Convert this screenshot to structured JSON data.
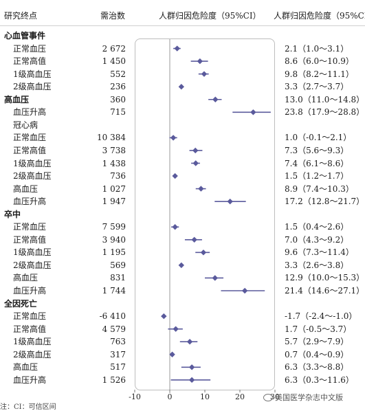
{
  "header": {
    "col_group": "研究终点",
    "col_nnt": "需治数",
    "col_paf_plot": "人群归因危险度（95%CI）",
    "col_paf_text": "人群归因危险度（95%CI）"
  },
  "rows": [
    {
      "label": "心血管事件",
      "group": true,
      "nnt": "",
      "ci": "",
      "est": null,
      "lo": null,
      "hi": null
    },
    {
      "label": "正常血压",
      "group": false,
      "nnt": "2 672",
      "ci": "2.1（1.0～3.1）",
      "est": 2.1,
      "lo": 1.0,
      "hi": 3.1
    },
    {
      "label": "正常高值",
      "group": false,
      "nnt": "1 450",
      "ci": "8.6（6.0～10.9）",
      "est": 8.6,
      "lo": 6.0,
      "hi": 10.9
    },
    {
      "label": "1级高血压",
      "group": false,
      "nnt": "552",
      "ci": "9.8（8.2～11.1）",
      "est": 9.8,
      "lo": 8.2,
      "hi": 11.1
    },
    {
      "label": "2级高血压",
      "group": false,
      "nnt": "236",
      "ci": "3.3（2.7～3.7）",
      "est": 3.3,
      "lo": 2.7,
      "hi": 3.7
    },
    {
      "label": "高血压",
      "group": true,
      "nnt": "360",
      "ci": "13.0（11.0～14.8）",
      "est": 13.0,
      "lo": 11.0,
      "hi": 14.8
    },
    {
      "label": "血压升高",
      "group": false,
      "nnt": "715",
      "ci": "23.8（17.9～28.8）",
      "est": 23.8,
      "lo": 17.9,
      "hi": 28.8
    },
    {
      "label": "冠心病",
      "group": false,
      "nnt": "",
      "ci": "",
      "est": null,
      "lo": null,
      "hi": null
    },
    {
      "label": "正常血压",
      "group": false,
      "nnt": "10 384",
      "ci": "1.0（-0.1～2.1）",
      "est": 1.0,
      "lo": -0.1,
      "hi": 2.1
    },
    {
      "label": "正常高值",
      "group": false,
      "nnt": "3 738",
      "ci": "7.3（5.6～9.3）",
      "est": 7.3,
      "lo": 5.6,
      "hi": 9.3
    },
    {
      "label": "1级高血压",
      "group": false,
      "nnt": "1 438",
      "ci": "7.4（6.1～8.6）",
      "est": 7.4,
      "lo": 6.1,
      "hi": 8.6
    },
    {
      "label": "2级高血压",
      "group": false,
      "nnt": "736",
      "ci": "1.5（1.2～1.7）",
      "est": 1.5,
      "lo": 1.2,
      "hi": 1.7
    },
    {
      "label": "高血压",
      "group": false,
      "nnt": "1 027",
      "ci": "8.9（7.4～10.3）",
      "est": 8.9,
      "lo": 7.4,
      "hi": 10.3
    },
    {
      "label": "血压升高",
      "group": false,
      "nnt": "1 947",
      "ci": "17.2（12.8～21.7）",
      "est": 17.2,
      "lo": 12.8,
      "hi": 21.7
    },
    {
      "label": "卒中",
      "group": true,
      "nnt": "",
      "ci": "",
      "est": null,
      "lo": null,
      "hi": null
    },
    {
      "label": "正常血压",
      "group": false,
      "nnt": "7 599",
      "ci": "1.5（0.4～2.6）",
      "est": 1.5,
      "lo": 0.4,
      "hi": 2.6
    },
    {
      "label": "正常高值",
      "group": false,
      "nnt": "3 940",
      "ci": "7.0（4.3～9.2）",
      "est": 7.0,
      "lo": 4.3,
      "hi": 9.2
    },
    {
      "label": "1级高血压",
      "group": false,
      "nnt": "1 195",
      "ci": "9.6（7.3～11.4）",
      "est": 9.6,
      "lo": 7.3,
      "hi": 11.4
    },
    {
      "label": "2级高血压",
      "group": false,
      "nnt": "569",
      "ci": "3.3（2.6～3.8）",
      "est": 3.3,
      "lo": 2.6,
      "hi": 3.8
    },
    {
      "label": "高血压",
      "group": false,
      "nnt": "831",
      "ci": "12.9（10.0～15.3）",
      "est": 12.9,
      "lo": 10.0,
      "hi": 15.3
    },
    {
      "label": "血压升高",
      "group": false,
      "nnt": "1 744",
      "ci": "21.4（14.6～27.1）",
      "est": 21.4,
      "lo": 14.6,
      "hi": 27.1
    },
    {
      "label": "全因死亡",
      "group": true,
      "nnt": "",
      "ci": "",
      "est": null,
      "lo": null,
      "hi": null
    },
    {
      "label": "正常血压",
      "group": false,
      "nnt": "-6 410",
      "ci": "-1.7（-2.4～-1.0）",
      "est": -1.7,
      "lo": -2.4,
      "hi": -1.0
    },
    {
      "label": "正常高值",
      "group": false,
      "nnt": "4 579",
      "ci": "1.7（-0.5～3.7）",
      "est": 1.7,
      "lo": -0.5,
      "hi": 3.7
    },
    {
      "label": "1级高血压",
      "group": false,
      "nnt": "763",
      "ci": "5.7（2.9～7.9）",
      "est": 5.7,
      "lo": 2.9,
      "hi": 7.9
    },
    {
      "label": "2级高血压",
      "group": false,
      "nnt": "317",
      "ci": "0.7（0.4～0.9）",
      "est": 0.7,
      "lo": 0.4,
      "hi": 0.9
    },
    {
      "label": "高血压",
      "group": false,
      "nnt": "517",
      "ci": "6.3（3.3～8.8）",
      "est": 6.3,
      "lo": 3.3,
      "hi": 8.8
    },
    {
      "label": "血压升高",
      "group": false,
      "nnt": "1 526",
      "ci": "6.3（0.3～11.6）",
      "est": 6.3,
      "lo": 0.3,
      "hi": 11.6
    }
  ],
  "chart_data": {
    "type": "scatter",
    "subtype": "forest-plot",
    "xlim": [
      -10,
      30
    ],
    "x_ticks": [
      -10,
      0,
      10,
      20,
      30
    ],
    "reference_line": 0,
    "marker_color": "#5a5a9c",
    "grid": false
  },
  "watermark": {
    "text": "美国医学杂志中文版",
    "icon": "wechat-icon"
  },
  "footnote": "注：CI：可信区间"
}
